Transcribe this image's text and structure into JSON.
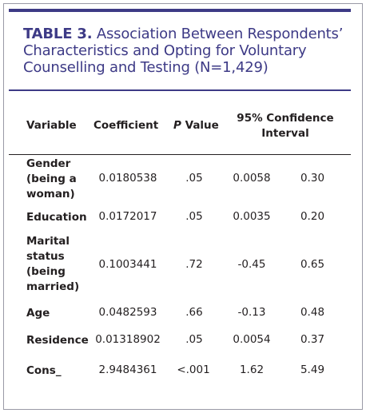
{
  "table": {
    "label": "TABLE 3.",
    "title": "Association Between Respondents’ Characteristics and Opting for Voluntary Counselling and Testing (N=1,429)",
    "title_lines": [
      "Characteristics and Opting for Voluntary",
      "Counselling and Testing (N=1,429)"
    ],
    "title_first_line_rest": "Association Between Respondents’",
    "headers": {
      "variable": "Variable",
      "coefficient": "Coefficient",
      "pvalue_italic": "P",
      "pvalue_rest": " Value",
      "ci_line1": "95% Confidence",
      "ci_line2": "Interval"
    },
    "rows": [
      {
        "variable": "Gender (being a woman)",
        "var_lines": [
          "Gender",
          "(being a",
          "woman)"
        ],
        "coefficient": "0.0180538",
        "p": ".05",
        "ci_low": "0.0058",
        "ci_high": "0.30"
      },
      {
        "variable": "Education",
        "var_lines": [
          "Education"
        ],
        "coefficient": "0.0172017",
        "p": ".05",
        "ci_low": "0.0035",
        "ci_high": "0.20"
      },
      {
        "variable": "Marital status (being married)",
        "var_lines": [
          "Marital",
          "status",
          "(being",
          "married)"
        ],
        "coefficient": "0.1003441",
        "p": ".72",
        "ci_low": "-0.45",
        "ci_high": "0.65"
      },
      {
        "variable": "Age",
        "var_lines": [
          "Age"
        ],
        "coefficient": "0.0482593",
        "p": ".66",
        "ci_low": "-0.13",
        "ci_high": "0.48"
      },
      {
        "variable": "Residence",
        "var_lines": [
          "Residence"
        ],
        "coefficient": "0.01318902",
        "p": ".05",
        "ci_low": "0.0054",
        "ci_high": "0.37"
      },
      {
        "variable": "Cons_",
        "var_lines": [
          "Cons_"
        ],
        "coefficient": "2.9484361",
        "p": "<.001",
        "ci_low": "1.62",
        "ci_high": "5.49"
      }
    ],
    "colors": {
      "accent": "#3d3a86",
      "text": "#231f20",
      "border": "#9a9aa6"
    }
  }
}
